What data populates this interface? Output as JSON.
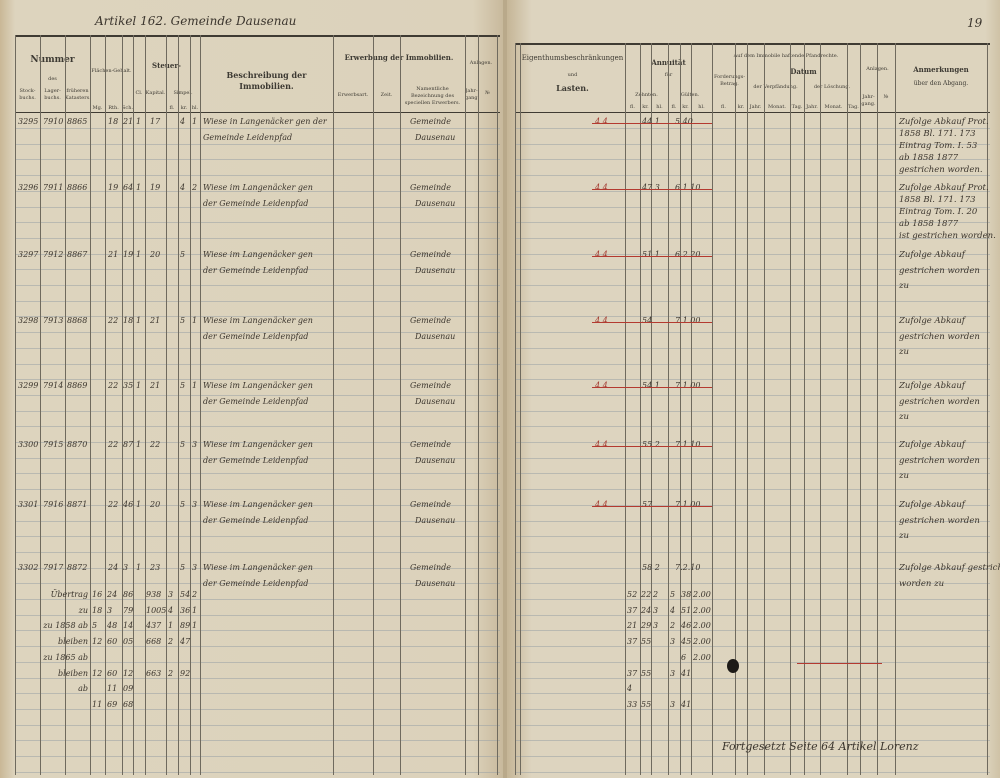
{
  "left_page": {
    "heading": "Artikel 162.   Gemeinde Dausenau",
    "headers": {
      "nummer": "Nummer",
      "des": "des",
      "stockbuchs": "Stock-buchs.",
      "lagerbuchs": "Lager-buchs.",
      "frueheren_katasters": "früheren Katasters.",
      "flaechen_gehalt": "Flächen-Gehalt.",
      "flaechen_units": [
        "Mg.",
        "Rth.",
        "Sch."
      ],
      "steuer": "Steuer-",
      "cl": "Cl.",
      "kapital": "Kapital.",
      "simpel": "Simpel.",
      "simpel_units": [
        "fl.",
        "kr.",
        "hl."
      ],
      "beschreibung": "Beschreibung der Immobilien.",
      "erwerbung": "Erwerbung der Immobilien.",
      "erwerbsart": "Erwerbsart.",
      "zeit": "Zeit.",
      "erwerber": "Namentliche Bezeichnung des speciellen Erwerbers.",
      "anlagen": "Anlagen.",
      "jahrgang": "Jahr-gang.",
      "nr": "№"
    },
    "rows": [
      {
        "stock": "3295",
        "lager": "7910",
        "kataster": "8865",
        "rth": "18",
        "sch": "21",
        "cl": "1",
        "kapital": "17",
        "kr": "4",
        "hl": "1",
        "desc1": "Wiese in Langenäcker gen der",
        "desc2": "Gemeinde Leidenpfad",
        "erwerber1": "Gemeinde",
        "erwerber2": "Dausenau"
      },
      {
        "stock": "3296",
        "lager": "7911",
        "kataster": "8866",
        "rth": "19",
        "sch": "64",
        "cl": "1",
        "kapital": "19",
        "kr": "4",
        "hl": "2",
        "desc1": "Wiese im Langenäcker gen",
        "desc2": "der Gemeinde Leidenpfad",
        "erwerber1": "Gemeinde",
        "erwerber2": "Dausenau"
      },
      {
        "stock": "3297",
        "lager": "7912",
        "kataster": "8867",
        "rth": "21",
        "sch": "19",
        "cl": "1",
        "kapital": "20",
        "kr": "5",
        "hl": "",
        "desc1": "Wiese im Langenäcker gen",
        "desc2": "der Gemeinde Leidenpfad",
        "erwerber1": "Gemeinde",
        "erwerber2": "Dausenau"
      },
      {
        "stock": "3298",
        "lager": "7913",
        "kataster": "8868",
        "rth": "22",
        "sch": "18",
        "cl": "1",
        "kapital": "21",
        "kr": "5",
        "hl": "1",
        "desc1": "Wiese im Langenäcker gen",
        "desc2": "der Gemeinde Leidenpfad",
        "erwerber1": "Gemeinde",
        "erwerber2": "Dausenau"
      },
      {
        "stock": "3299",
        "lager": "7914",
        "kataster": "8869",
        "rth": "22",
        "sch": "35",
        "cl": "1",
        "kapital": "21",
        "kr": "5",
        "hl": "1",
        "desc1": "Wiese im Langenäcker gen",
        "desc2": "der Gemeinde Leidenpfad",
        "erwerber1": "Gemeinde",
        "erwerber2": "Dausenau"
      },
      {
        "stock": "3300",
        "lager": "7915",
        "kataster": "8870",
        "rth": "22",
        "sch": "87",
        "cl": "1",
        "kapital": "22",
        "kr": "5",
        "hl": "3",
        "desc1": "Wiese im Langenäcker gen",
        "desc2": "der Gemeinde Leidenpfad",
        "erwerber1": "Gemeinde",
        "erwerber2": "Dausenau"
      },
      {
        "stock": "3301",
        "lager": "7916",
        "kataster": "8871",
        "rth": "22",
        "sch": "46",
        "cl": "1",
        "kapital": "20",
        "kr": "5",
        "hl": "3",
        "desc1": "Wiese im Langenäcker gen",
        "desc2": "der Gemeinde Leidenpfad",
        "erwerber1": "Gemeinde",
        "erwerber2": "Dausenau"
      },
      {
        "stock": "3302",
        "lager": "7917",
        "kataster": "8872",
        "rth": "24",
        "sch": "3",
        "cl": "1",
        "kapital": "23",
        "kr": "5",
        "hl": "3",
        "desc1": "Wiese im Langenäcker gen",
        "desc2": "der Gemeinde Leidenpfad",
        "erwerber1": "Gemeinde",
        "erwerber2": "Dausenau"
      }
    ],
    "totals": [
      {
        "label": "Übertrag",
        "a": "16",
        "b": "24",
        "c": "86",
        "d": "938",
        "e": "3",
        "f": "54",
        "g": "2"
      },
      {
        "label": "zu",
        "a": "18",
        "b": "3",
        "c": "79",
        "d": "1005",
        "e": "4",
        "f": "36",
        "g": "1"
      },
      {
        "label": "zu 1858 ab",
        "a": "5",
        "b": "48",
        "c": "14",
        "d": "437",
        "e": "1",
        "f": "89",
        "g": "1"
      },
      {
        "label": "bleiben",
        "a": "12",
        "b": "60",
        "c": "05",
        "d": "668",
        "e": "2",
        "f": "47",
        "g": ""
      },
      {
        "label": "zu 1865 ab",
        "a": "",
        "b": "",
        "c": "",
        "d": "",
        "e": "",
        "f": "",
        "g": ""
      },
      {
        "label": "bleiben",
        "a": "12",
        "b": "60",
        "c": "12",
        "d": "663",
        "e": "2",
        "f": "92",
        "g": ""
      },
      {
        "label": "ab",
        "a": "",
        "b": "11",
        "c": "09",
        "d": "",
        "e": "",
        "f": "",
        "g": ""
      },
      {
        "label": "",
        "a": "11",
        "b": "69",
        "c": "68",
        "d": "",
        "e": "",
        "f": "",
        "g": ""
      }
    ]
  },
  "right_page": {
    "page_number": "19",
    "headers": {
      "eigenthum": "Eigenthumsbeschränkungen",
      "und": "und",
      "lasten": "Lasten.",
      "annuitaet": "Annuität",
      "fuer": "für",
      "zehnten": "Zehnten.",
      "guelten": "Gülten.",
      "money_units": [
        "fl.",
        "kr.",
        "hl."
      ],
      "pfandrechte": "Auf dem Immobile haftende Pfandrechte.",
      "forderungs": "Forderungs-Betrag.",
      "ford_units": [
        "fl.",
        "kr."
      ],
      "datum": "Datum",
      "verpfaendung": "der Verpfändung.",
      "loeschung": "der Löschung.",
      "date_units": [
        "Jahr.",
        "Monat.",
        "Tag."
      ],
      "anlagen": "Anlagen.",
      "jahrgang": "Jahr-gang.",
      "nr": "№",
      "anmerkungen": "Anmerkungen",
      "abgang": "über den Abgang."
    },
    "rows": [
      {
        "lasten": "4.4",
        "zehnten": "44 1",
        "guelten": "5.40",
        "remark": [
          "Zufolge Abkauf Prot.",
          "1858 Bl. 171. 173",
          "Eintrag Tom. I. 53",
          "ab 1858 1877",
          "gestrichen worden."
        ]
      },
      {
        "lasten": "4.4",
        "zehnten": "47 3",
        "guelten": "6.1.10",
        "remark": [
          "Zufolge Abkauf Prot.",
          "1858 Bl. 171. 173",
          "Eintrag Tom. I. 20",
          "ab 1858 1877",
          "ist gestrichen worden."
        ]
      },
      {
        "lasten": "4.4",
        "zehnten": "51 1",
        "guelten": "6.2.20",
        "remark": [
          "Zufolge Abkauf",
          "gestrichen worden",
          "zu"
        ]
      },
      {
        "lasten": "4.4",
        "zehnten": "54",
        "guelten": "7.1.00",
        "remark": [
          "Zufolge Abkauf",
          "gestrichen worden",
          "zu"
        ]
      },
      {
        "lasten": "4.4",
        "zehnten": "54 1",
        "guelten": "7.1.00",
        "remark": [
          "Zufolge Abkauf",
          "gestrichen worden",
          "zu"
        ]
      },
      {
        "lasten": "4.4",
        "zehnten": "55 2",
        "guelten": "7.1.10",
        "remark": [
          "Zufolge Abkauf",
          "gestrichen worden",
          "zu"
        ]
      },
      {
        "lasten": "4.4",
        "zehnten": "57",
        "guelten": "7.1.00",
        "remark": [
          "Zufolge Abkauf",
          "gestrichen worden",
          "zu"
        ]
      },
      {
        "lasten": "",
        "zehnten": "58 2",
        "guelten": "7.2.10",
        "remark": [
          "Zufolge Abkauf gestrichen",
          "worden zu"
        ]
      }
    ],
    "totals": [
      {
        "a": "52",
        "b": "22",
        "c": "2",
        "d": "5",
        "e": "38",
        "f": "2.00"
      },
      {
        "a": "37",
        "b": "24",
        "c": "3",
        "d": "4",
        "e": "51",
        "f": "2.00"
      },
      {
        "a": "21",
        "b": "29",
        "c": "3",
        "d": "2",
        "e": "46",
        "f": "2.00"
      },
      {
        "a": "37",
        "b": "55",
        "c": "",
        "d": "3",
        "e": "45",
        "f": "2.00"
      },
      {
        "a": "",
        "b": "",
        "c": "",
        "d": "",
        "e": "6",
        "f": "2.00"
      },
      {
        "a": "37",
        "b": "55",
        "c": "",
        "d": "3",
        "e": "41",
        "f": ""
      },
      {
        "a": "4",
        "b": "",
        "c": "",
        "d": "",
        "e": "",
        "f": ""
      },
      {
        "a": "33",
        "b": "55",
        "c": "",
        "d": "3",
        "e": "41",
        "f": ""
      }
    ],
    "footer_note": "Fortgesetzt Seite 64 Artikel Lorenz"
  }
}
